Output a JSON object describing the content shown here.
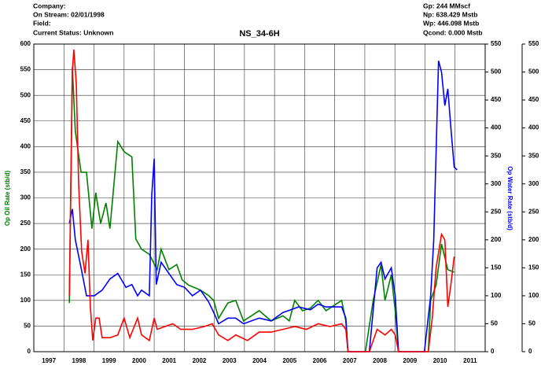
{
  "chart_data": {
    "type": "line",
    "title": "NS_34-6H",
    "info_left": [
      "Company:",
      "On Stream: 02/01/1998",
      "Field:",
      "Current Status: Unknown"
    ],
    "info_right": [
      "Gp: 244 MMscf",
      "Np: 638.429 Mstb",
      "Wp: 446.098 Mstb",
      "Qcond: 0.000 Mstb"
    ],
    "y_label": "Op Oil Rate (stb/d)",
    "y2_label": "Op Water Rate (stb/d)",
    "xlim": [
      1997,
      2012
    ],
    "xticks": [
      {
        "value": 1997.5,
        "label": "1997"
      },
      {
        "value": 1998.5,
        "label": "1998"
      },
      {
        "value": 1999.5,
        "label": "1999"
      },
      {
        "value": 2000.5,
        "label": "2000"
      },
      {
        "value": 2001.5,
        "label": "2001"
      },
      {
        "value": 2002.5,
        "label": "2002"
      },
      {
        "value": 2003.5,
        "label": "2003"
      },
      {
        "value": 2004.5,
        "label": "2004"
      },
      {
        "value": 2005.5,
        "label": "2005"
      },
      {
        "value": 2006.5,
        "label": "2006"
      },
      {
        "value": 2007.5,
        "label": "2007"
      },
      {
        "value": 2008.5,
        "label": "2008"
      },
      {
        "value": 2009.5,
        "label": "2009"
      },
      {
        "value": 2010.5,
        "label": "2010"
      },
      {
        "value": 2011.5,
        "label": "2011"
      }
    ],
    "ylim": [
      0,
      600
    ],
    "yticks": [
      0,
      50,
      100,
      150,
      200,
      250,
      300,
      350,
      400,
      450,
      500,
      550,
      600
    ],
    "y2lim": [
      0,
      550
    ],
    "y2ticks": [
      0,
      50,
      100,
      150,
      200,
      250,
      300,
      350,
      400,
      450,
      500,
      550
    ],
    "y3lim": [
      0,
      550
    ],
    "y3ticks": [
      0,
      50,
      100,
      150,
      200,
      250,
      300,
      350,
      400,
      450,
      500,
      550
    ],
    "grid": true,
    "series": [
      {
        "name": "Oil",
        "color": "#008000",
        "axis": "y",
        "x": [
          1998.18,
          1998.28,
          1998.38,
          1998.57,
          1998.75,
          1998.93,
          1999.06,
          1999.22,
          1999.4,
          1999.53,
          1999.79,
          2000.0,
          2000.26,
          2000.39,
          2000.58,
          2000.84,
          2001.1,
          2001.23,
          2001.49,
          2001.75,
          2001.93,
          2002.14,
          2002.54,
          2002.8,
          2002.98,
          2003.14,
          2003.45,
          2003.71,
          2003.97,
          2004.49,
          2004.89,
          2005.28,
          2005.49,
          2005.67,
          2005.93,
          2006.19,
          2006.45,
          2006.71,
          2006.97,
          2007.23,
          2007.37,
          2007.44,
          2008.02,
          2008.28,
          2008.54,
          2008.67,
          2008.88,
          2009.01,
          2009.12,
          2010.11,
          2010.19,
          2010.37,
          2010.55,
          2010.76,
          2010.97
        ],
        "values": [
          95,
          555,
          430,
          350,
          350,
          240,
          310,
          250,
          290,
          240,
          410,
          390,
          380,
          220,
          200,
          190,
          160,
          200,
          160,
          170,
          140,
          130,
          120,
          110,
          100,
          65,
          95,
          100,
          60,
          80,
          60,
          70,
          60,
          100,
          80,
          85,
          100,
          80,
          90,
          100,
          60,
          0,
          0,
          100,
          170,
          100,
          150,
          80,
          0,
          0,
          100,
          130,
          210,
          160,
          155
        ]
      },
      {
        "name": "Water",
        "color": "#0000ff",
        "axis": "y2",
        "x": [
          1998.18,
          1998.28,
          1998.38,
          1998.57,
          1998.75,
          1999.01,
          1999.27,
          1999.53,
          1999.79,
          2000.06,
          2000.26,
          2000.45,
          2000.58,
          2000.84,
          2000.92,
          2001.0,
          2001.07,
          2001.23,
          2001.49,
          2001.75,
          2002.01,
          2002.27,
          2002.54,
          2002.8,
          2002.98,
          2003.14,
          2003.45,
          2003.71,
          2003.97,
          2004.49,
          2004.89,
          2005.28,
          2005.54,
          2005.8,
          2006.19,
          2006.45,
          2006.71,
          2006.97,
          2007.23,
          2007.37,
          2007.44,
          2008.15,
          2008.41,
          2008.54,
          2008.67,
          2008.88,
          2009.01,
          2009.12,
          2009.98,
          2010.19,
          2010.29,
          2010.45,
          2010.55,
          2010.66,
          2010.76,
          2010.86,
          2010.97,
          2011.07
        ],
        "values": [
          230,
          255,
          200,
          150,
          100,
          100,
          110,
          130,
          140,
          115,
          120,
          100,
          110,
          100,
          280,
          345,
          120,
          160,
          140,
          120,
          115,
          100,
          110,
          90,
          70,
          50,
          60,
          60,
          50,
          60,
          55,
          70,
          75,
          80,
          75,
          85,
          80,
          80,
          80,
          60,
          0,
          0,
          150,
          160,
          130,
          150,
          100,
          0,
          0,
          100,
          200,
          520,
          500,
          440,
          470,
          400,
          330,
          325
        ]
      },
      {
        "name": "Gas",
        "color": "#ff0000",
        "axis": "y3",
        "x": [
          1998.18,
          1998.28,
          1998.33,
          1998.41,
          1998.49,
          1998.59,
          1998.7,
          1998.8,
          1998.88,
          1998.96,
          1999.06,
          1999.17,
          1999.27,
          1999.53,
          1999.79,
          2000.0,
          2000.19,
          2000.45,
          2000.58,
          2000.84,
          2001.0,
          2001.1,
          2001.36,
          2001.62,
          2001.88,
          2002.27,
          2002.67,
          2002.93,
          2003.14,
          2003.45,
          2003.71,
          2004.1,
          2004.49,
          2004.89,
          2005.28,
          2005.67,
          2006.06,
          2006.45,
          2006.84,
          2007.23,
          2007.37,
          2007.44,
          2008.15,
          2008.41,
          2008.67,
          2008.88,
          2009.01,
          2009.12,
          2010.11,
          2010.24,
          2010.37,
          2010.55,
          2010.66,
          2010.76,
          2010.86,
          2010.97
        ],
        "values": [
          100,
          500,
          540,
          480,
          300,
          180,
          140,
          200,
          80,
          20,
          60,
          60,
          25,
          25,
          30,
          60,
          25,
          60,
          30,
          20,
          60,
          40,
          45,
          50,
          40,
          40,
          45,
          50,
          30,
          20,
          30,
          20,
          35,
          35,
          40,
          45,
          40,
          50,
          45,
          50,
          40,
          0,
          0,
          40,
          30,
          40,
          30,
          0,
          0,
          60,
          150,
          210,
          200,
          80,
          120,
          170
        ]
      }
    ]
  }
}
